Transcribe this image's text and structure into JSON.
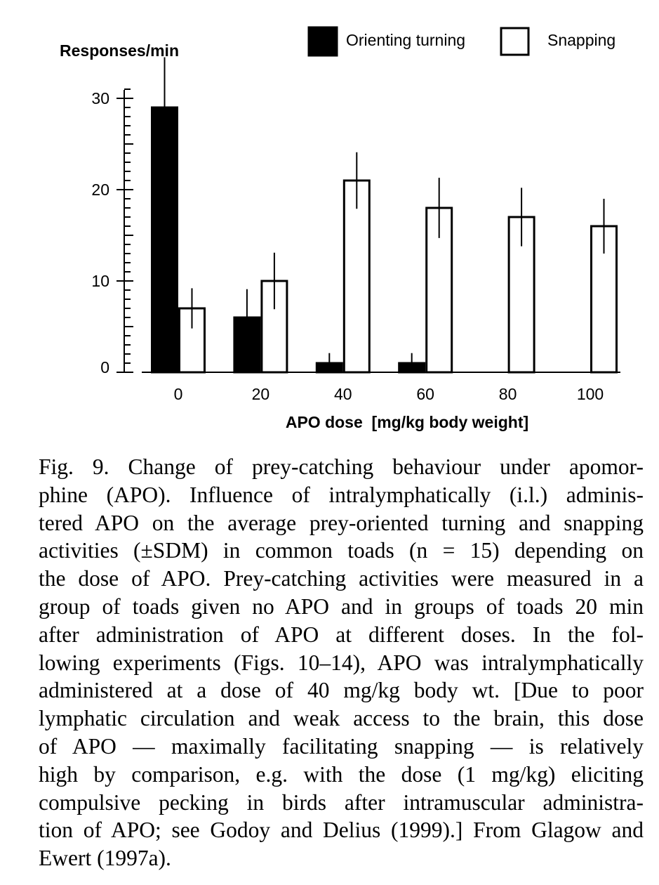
{
  "chart_data": {
    "type": "bar",
    "ylabel": "Responses/min",
    "xlabel": "APO dose  [mg/kg body weight]",
    "categories": [
      "0",
      "20",
      "40",
      "60",
      "80",
      "100"
    ],
    "ylim": [
      0,
      30
    ],
    "yticks": [
      0,
      10,
      20,
      30
    ],
    "legend_position": "top-right",
    "series": [
      {
        "name": "Orienting turning",
        "fill": "#000000",
        "values": [
          29,
          6,
          1,
          1,
          null,
          null
        ],
        "error": [
          5.5,
          3.1,
          1.1,
          1.1,
          null,
          null
        ]
      },
      {
        "name": "Snapping",
        "fill": "#ffffff",
        "values": [
          7,
          10,
          21,
          18,
          17,
          16
        ],
        "error": [
          2.2,
          3.1,
          3.1,
          3.3,
          3.2,
          3.0
        ]
      }
    ]
  },
  "caption": {
    "lines": [
      "Fig. 9. Change of prey-catching behaviour under apomor-",
      "phine (APO). Influence of intralymphatically (i.l.) adminis-",
      "tered APO on the average prey-oriented turning and snapping",
      "activities (±SDM) in common toads (n = 15) depending on",
      "the dose of APO. Prey-catching activities were measured in a",
      "group of toads given no APO and in groups of toads 20 min",
      "after administration of APO at different doses. In the fol-",
      "lowing experiments (Figs. 10–14), APO was intralymphatically",
      "administered at a dose of 40 mg/kg body wt. [Due to poor",
      "lymphatic circulation and weak access to the brain, this dose",
      "of APO — maximally facilitating snapping — is relatively",
      "high by comparison, e.g. with the dose (1 mg/kg) eliciting",
      "compulsive pecking in birds after intramuscular administra-",
      "tion of APO; see Godoy and Delius (1999).] From Glagow and",
      "Ewert (1997a)."
    ]
  }
}
